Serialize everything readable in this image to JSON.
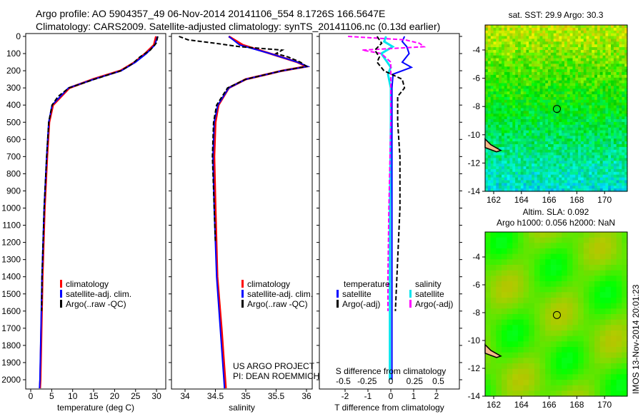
{
  "header": {
    "line1": "Argo profile: AO 5904357_49 06-Nov-2014 20141106_554 8.1726S 166.5647E",
    "line2": "Climatology: CARS2009. Satellite-adjusted climatology: synTS_20141106.nc (0.13d earlier)"
  },
  "colors": {
    "climatology": "#ff0000",
    "satellite": "#0000ff",
    "argo": "#000000",
    "sal_satellite": "#00e5ee",
    "sal_argo": "#ff00ff"
  },
  "chart_data": [
    {
      "type": "line",
      "name": "temperature",
      "xlabel": "temperature (deg C)",
      "xlim": [
        -1,
        31
      ],
      "ylim": [
        2050,
        0
      ],
      "xticks": [
        "0",
        "5",
        "10",
        "15",
        "20",
        "25",
        "30"
      ],
      "yticks": [
        "0",
        "100",
        "200",
        "300",
        "400",
        "500",
        "600",
        "700",
        "800",
        "900",
        "1000",
        "1100",
        "1200",
        "1300",
        "1400",
        "1500",
        "1600",
        "1700",
        "1800",
        "1900",
        "2000"
      ],
      "legend": [
        "climatology",
        "satellite-adj. clim.",
        "Argo(..raw -QC)"
      ],
      "series": [
        {
          "name": "climatology",
          "depth": [
            0,
            50,
            100,
            150,
            200,
            250,
            300,
            400,
            500,
            700,
            1000,
            1400,
            2000,
            2050
          ],
          "values": [
            29.9,
            29.4,
            27.3,
            24.8,
            21.4,
            14.8,
            9.2,
            5.3,
            4.4,
            3.9,
            3.3,
            2.8,
            2.3,
            2.2
          ]
        },
        {
          "name": "satellite-adj. clim.",
          "depth": [
            0,
            50,
            100,
            150,
            200,
            250,
            300,
            400,
            500,
            700,
            1000,
            1400,
            2000,
            2050
          ],
          "values": [
            30.2,
            29.6,
            27.6,
            25,
            21.6,
            15,
            9,
            5.1,
            4.3,
            3.8,
            3.2,
            2.7,
            2.2,
            2.1
          ]
        },
        {
          "name": "Argo(..raw -QC)",
          "depth": [
            0,
            40,
            80,
            120,
            160,
            200,
            250,
            300,
            350,
            400,
            500,
            700,
            1000,
            1400,
            1600
          ],
          "values": [
            30.3,
            29.9,
            28.5,
            26,
            24.2,
            21.5,
            15.2,
            9.1,
            6.5,
            5.1,
            4.3,
            3.8,
            3.2,
            2.7,
            2.6
          ]
        }
      ]
    },
    {
      "type": "line",
      "name": "salinity",
      "xlabel": "salinity",
      "xlim": [
        33.8,
        36.1
      ],
      "ylim": [
        2050,
        0
      ],
      "xticks": [
        "34",
        "34.5",
        "35",
        "35.5",
        "36"
      ],
      "legend": [
        "climatology",
        "satellite-adj. clim.",
        "Argo(..raw -QC)"
      ],
      "annotation": [
        "US ARGO PROJECT",
        "PI: DEAN ROEMMICH"
      ],
      "series": [
        {
          "name": "climatology",
          "depth": [
            0,
            50,
            100,
            150,
            175,
            200,
            250,
            300,
            400,
            500,
            700,
            1000,
            1400,
            1700,
            2000,
            2050
          ],
          "values": [
            34.72,
            34.95,
            35.4,
            35.85,
            36.0,
            35.6,
            35.0,
            34.72,
            34.55,
            34.5,
            34.48,
            34.5,
            34.53,
            34.6,
            34.66,
            34.67
          ]
        },
        {
          "name": "satellite-adj. clim.",
          "depth": [
            0,
            50,
            100,
            150,
            175,
            200,
            250,
            300,
            400,
            500,
            700,
            1000,
            1400,
            1700,
            2000,
            2050
          ],
          "values": [
            34.72,
            34.9,
            35.4,
            35.85,
            36.02,
            35.6,
            35.0,
            34.72,
            34.54,
            34.48,
            34.46,
            34.48,
            34.52,
            34.58,
            34.64,
            34.65
          ]
        },
        {
          "name": "Argo(..raw -QC)",
          "depth": [
            0,
            20,
            40,
            60,
            80,
            100,
            120,
            150,
            175,
            200,
            250,
            300,
            400,
            500,
            700,
            1000,
            1200
          ],
          "values": [
            33.9,
            34.05,
            34.5,
            34.9,
            35.6,
            35.5,
            35.7,
            35.9,
            36.0,
            35.6,
            35.0,
            34.7,
            34.52,
            34.47,
            34.45,
            34.48,
            34.5
          ]
        }
      ]
    },
    {
      "type": "line",
      "name": "differences",
      "xlabel": "T difference from climatology",
      "xlim": [
        -2.9,
        3
      ],
      "xticks": [
        "-2",
        "-1",
        "0",
        "1",
        "2"
      ],
      "x2label": "S difference from climatology",
      "x2ticks": [
        "-0.5",
        "-0.25",
        "0",
        "0.25",
        "0.5"
      ],
      "ylim": [
        2050,
        0
      ],
      "legend": {
        "temperature": "temperature",
        "t_sat": "satellite",
        "t_argo": "Argo(-adj)",
        "salinity": "salinity",
        "s_sat": "satellite",
        "s_argo": "Argo(-adj)"
      },
      "series": [
        {
          "name": "temperature satellite",
          "axis": "T",
          "depth": [
            0,
            30,
            60,
            100,
            150,
            180,
            220,
            300,
            500,
            1000,
            2000
          ],
          "values": [
            0.6,
            0.5,
            0.7,
            0.8,
            0.5,
            0.9,
            0.1,
            0.05,
            0.05,
            0.05,
            0.05
          ]
        },
        {
          "name": "temperature Argo(-adj)",
          "axis": "T",
          "depth": [
            0,
            40,
            80,
            120,
            150,
            200,
            250,
            300,
            350,
            400,
            500,
            700,
            1000,
            1300,
            1600
          ],
          "values": [
            -0.6,
            -0.4,
            -0.7,
            -0.5,
            -0.6,
            -0.3,
            0.5,
            0.6,
            0.3,
            0.3,
            0.3,
            0.4,
            0.4,
            0.3,
            0.2
          ]
        },
        {
          "name": "salinity satellite",
          "axis": "S",
          "depth": [
            0,
            30,
            60,
            100,
            140,
            180,
            220,
            300,
            500,
            1000,
            2000
          ],
          "values": [
            -0.05,
            -0.07,
            0.02,
            -0.1,
            -0.05,
            0,
            -0.03,
            0,
            0,
            -0.01,
            -0.01
          ]
        },
        {
          "name": "salinity Argo(-adj)",
          "axis": "S",
          "depth": [
            0,
            20,
            40,
            60,
            80,
            100,
            150,
            200,
            300,
            500,
            1000,
            1400,
            1600
          ],
          "values": [
            -0.45,
            0.15,
            0.3,
            0.35,
            -0.3,
            -0.1,
            0,
            0,
            0,
            0,
            -0.02,
            -0.03,
            -0.03
          ]
        }
      ]
    },
    {
      "type": "heatmap",
      "name": "sst-map",
      "title": "sat. SST: 29.9 Argo: 30.3",
      "xticks": [
        "162",
        "164",
        "166",
        "168",
        "170"
      ],
      "yticks": [
        "-4",
        "-6",
        "-8",
        "-10",
        "-12",
        "-14"
      ],
      "xlim": [
        161.4,
        171.7
      ],
      "ylim": [
        -14.2,
        -2.3
      ],
      "marker": [
        166.56,
        -8.17
      ]
    },
    {
      "type": "heatmap",
      "name": "sla-map",
      "title": [
        "Altim. SLA: 0.092",
        "Argo h1000: 0.056 h2000: NaN"
      ],
      "xticks": [
        "162",
        "164",
        "166",
        "168",
        "170"
      ],
      "yticks": [
        "-4",
        "-6",
        "-8",
        "-10",
        "-12",
        "-14"
      ],
      "xlim": [
        161.4,
        171.7
      ],
      "ylim": [
        -14.2,
        -2.3
      ],
      "marker": [
        166.56,
        -8.17
      ]
    }
  ],
  "footer": {
    "stamp": "IMOS 13-Nov-2014 20:01:23"
  }
}
